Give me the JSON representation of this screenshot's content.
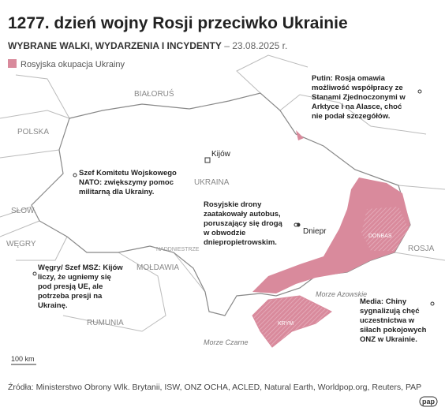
{
  "header": {
    "title": "1277. dzień wojny Rosji przeciwko Ukrainie",
    "subtitle": "WYBRANE WALKI, WYDARZENIA I INCYDENTY",
    "date": " – 23.08.2025 r."
  },
  "legend": {
    "label": "Rosyjska okupacja Ukrainy"
  },
  "places": [
    "BIAŁORUŚ",
    "POLSKA",
    "SŁOW.",
    "WĘGRY",
    "MOŁDAWIA",
    "RUMUNIA",
    "ROSJA",
    "UKRAINA",
    "NADDNIESTRZE",
    "DONBAS",
    "KRYM",
    "Morze Azowskie",
    "Morze Czarne"
  ],
  "cities": [
    "Kijów",
    "Dniepr"
  ],
  "notes": [
    {
      "lines": [
        "Putin: Rosja omawia",
        "możliwość współpracy ze",
        "Stanami Zjednoczonymi w",
        "Arktyce i na Alasce, choć",
        "nie podał szczegółów."
      ]
    },
    {
      "lines": [
        "Szef Komitetu Wojskowego",
        "NATO: zwiększymy pomoc",
        "militarną dla Ukrainy."
      ]
    },
    {
      "lines": [
        "Rosyjskie drony",
        "zaatakowały autobus,",
        "poruszający się drogą",
        "w obwodzie",
        "dniepropietrowskim."
      ]
    },
    {
      "lines": [
        "Węgry/ Szef MSZ: Kijów",
        "liczy, że ugniemy się",
        "pod presją UE, ale",
        "potrzeba presji na",
        "Ukrainę."
      ]
    },
    {
      "lines": [
        "Media: Chiny",
        "sygnalizują chęć",
        "uczestnictwa w",
        "siłach pokojowych",
        "ONZ w Ukrainie."
      ]
    }
  ],
  "scale": "100 km",
  "source": "Źródła: Ministerstwo Obrony Wlk. Brytanii, ISW, ONZ OCHA, ACLED, Natural Earth, Worldpop.org, Reuters, PAP",
  "logo": "pap"
}
